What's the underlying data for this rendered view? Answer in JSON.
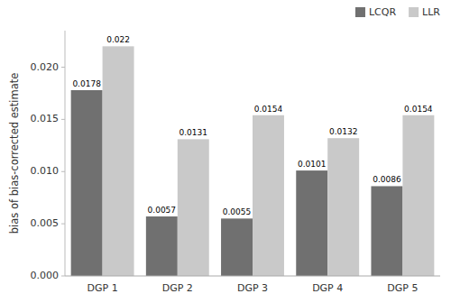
{
  "chart_data": {
    "type": "bar",
    "categories": [
      "DGP 1",
      "DGP 2",
      "DGP 3",
      "DGP 4",
      "DGP 5"
    ],
    "series": [
      {
        "name": "LCQR",
        "color": "#707070",
        "values": [
          0.0178,
          0.0057,
          0.0055,
          0.0101,
          0.0086
        ]
      },
      {
        "name": "LLR",
        "color": "#c9c9c9",
        "values": [
          0.022,
          0.0131,
          0.0154,
          0.0132,
          0.0154
        ]
      }
    ],
    "y_label": "bias of bias-corrected estimate",
    "ylim": [
      0,
      0.0235
    ],
    "yticks": [
      {
        "value": 0,
        "label": "0.000"
      },
      {
        "value": 0.005,
        "label": "0.005"
      },
      {
        "value": 0.01,
        "label": "0.010"
      },
      {
        "value": 0.015,
        "label": "0.015"
      },
      {
        "value": 0.02,
        "label": "0.020"
      }
    ],
    "grid": false,
    "legend": "upper-right",
    "data_labels": true
  }
}
